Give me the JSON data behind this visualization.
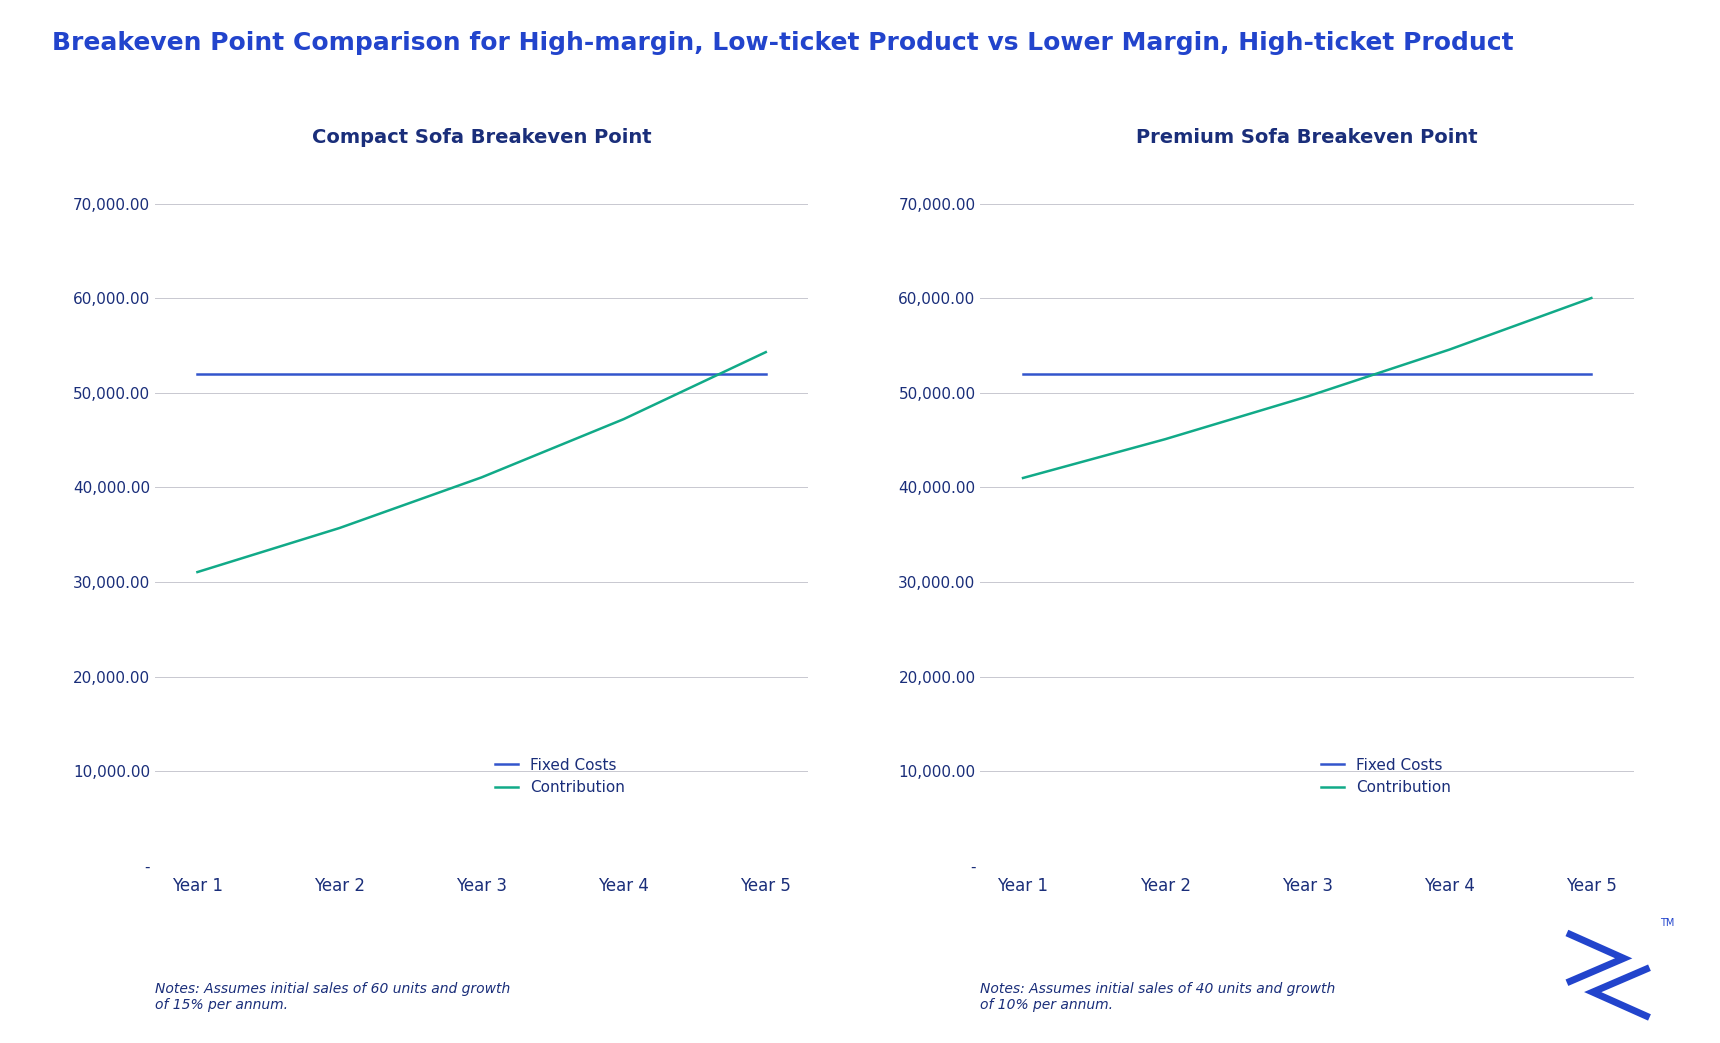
{
  "title": "Breakeven Point Comparison for High-margin, Low-ticket Product vs Lower Margin, High-ticket Product",
  "title_color": "#2244cc",
  "title_fontsize": 18,
  "charts": [
    {
      "title": "Compact Sofa Breakeven Point",
      "subtitle": "Notes: Assumes initial sales of 60 units and growth\nof 15% per annum.",
      "years": [
        "Year 1",
        "Year 2",
        "Year 3",
        "Year 4",
        "Year 5"
      ],
      "fixed_costs": [
        52000,
        52000,
        52000,
        52000,
        52000
      ],
      "contribution": [
        31050,
        35708,
        41064,
        47223,
        54307
      ],
      "ylim": [
        0,
        75000
      ],
      "yticks": [
        0,
        10000,
        20000,
        30000,
        40000,
        50000,
        60000,
        70000
      ]
    },
    {
      "title": "Premium Sofa Breakeven Point",
      "subtitle": "Notes: Assumes initial sales of 40 units and growth\nof 10% per annum.",
      "years": [
        "Year 1",
        "Year 2",
        "Year 3",
        "Year 4",
        "Year 5"
      ],
      "fixed_costs": [
        52000,
        52000,
        52000,
        52000,
        52000
      ],
      "contribution": [
        41000,
        45100,
        49610,
        54571,
        60028
      ],
      "ylim": [
        0,
        75000
      ],
      "yticks": [
        0,
        10000,
        20000,
        30000,
        40000,
        50000,
        60000,
        70000
      ]
    }
  ],
  "fixed_cost_color": "#3355cc",
  "contribution_color": "#11aa88",
  "legend_labels": [
    "Fixed Costs",
    "Contribution"
  ],
  "chart_title_color": "#1a2e7a",
  "tick_color": "#1a2e7a",
  "subtitle_color": "#1a2e7a",
  "background_color": "#ffffff",
  "grid_color": "#c8c8d0",
  "logo_color": "#2244cc"
}
